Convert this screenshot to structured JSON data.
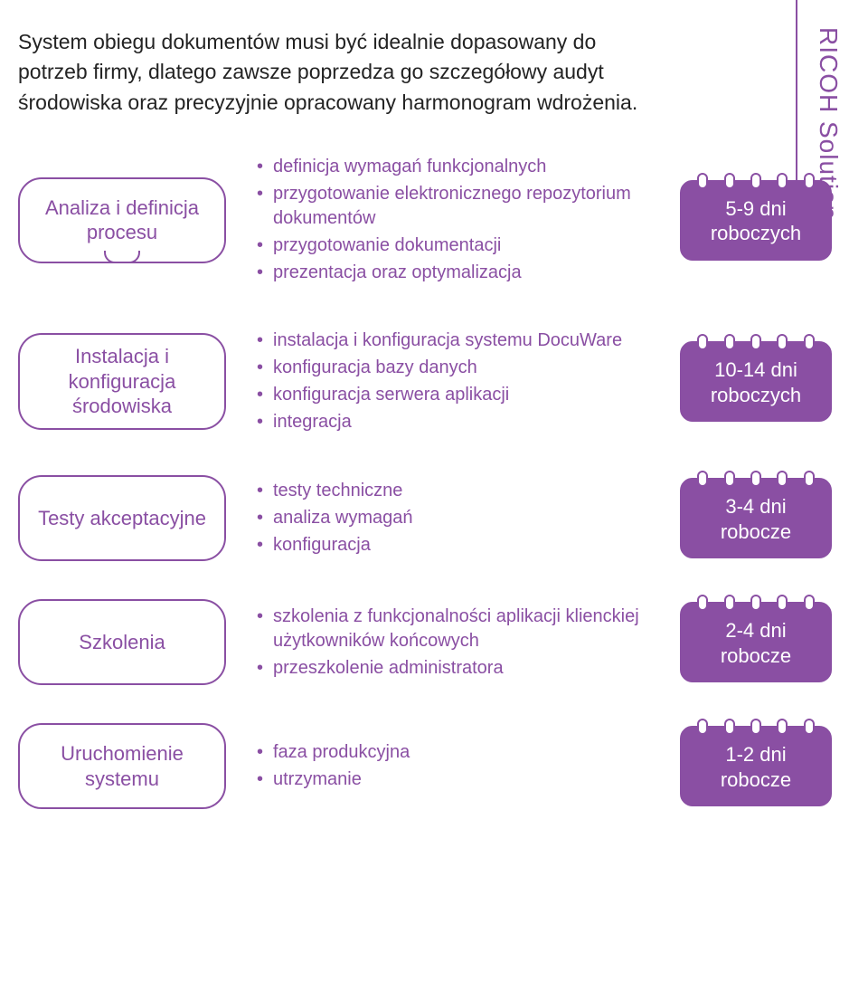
{
  "colors": {
    "primary": "#8a4fa3",
    "text": "#232323",
    "vrule": "#8a4fa3"
  },
  "sidebar_label": "RICOH Solution",
  "intro": "System obiegu dokumentów musi być idealnie dopasowany do potrzeb firmy, dlatego zawsze poprzedza go szczegółowy audyt środowiska oraz precyzyjnie opracowany harmonogram wdrożenia.",
  "stages": [
    {
      "title": "Analiza i definicja procesu",
      "bullets": [
        "definicja wymagań funkcjonalnych",
        "przygotowanie elektronicznego repozytorium dokumentów",
        "przygotowanie dokumentacji",
        "prezentacja oraz optymalizacja"
      ],
      "days_line1": "5-9 dni",
      "days_line2": "roboczych",
      "has_notch": true
    },
    {
      "title": "Instalacja i konfiguracja środowiska",
      "bullets": [
        "instalacja i konfiguracja systemu DocuWare",
        "konfiguracja bazy danych",
        "konfiguracja serwera aplikacji",
        "integracja"
      ],
      "days_line1": "10-14 dni",
      "days_line2": "roboczych",
      "has_notch": false
    },
    {
      "title": "Testy akceptacyjne",
      "bullets": [
        "testy techniczne",
        "analiza wymagań",
        "konfiguracja"
      ],
      "days_line1": "3-4 dni",
      "days_line2": "robocze",
      "has_notch": false
    },
    {
      "title": "Szkolenia",
      "bullets": [
        "szkolenia z funkcjonalności aplikacji klienckiej użytkowników końcowych",
        "przeszkolenie administratora"
      ],
      "days_line1": "2-4 dni",
      "days_line2": "robocze",
      "has_notch": false
    },
    {
      "title": "Uruchomienie systemu",
      "bullets": [
        "faza produkcyjna",
        "utrzymanie"
      ],
      "days_line1": "1-2 dni",
      "days_line2": "robocze",
      "has_notch": false
    }
  ]
}
